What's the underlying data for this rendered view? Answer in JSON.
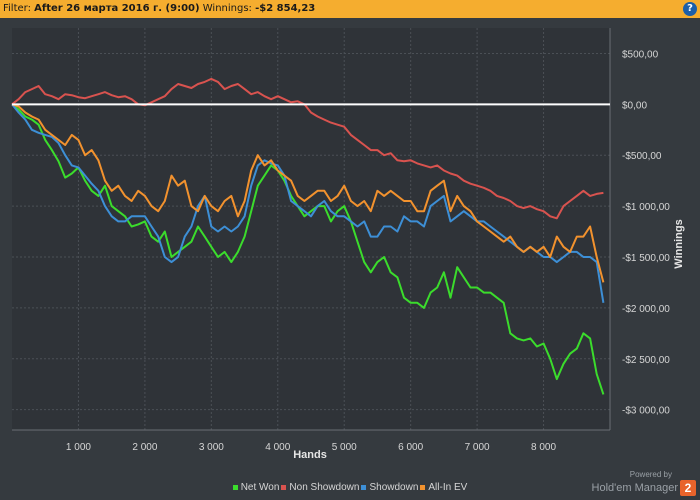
{
  "filter": {
    "label": "Filter:",
    "value": "After 26 марта 2016 г. (9:00)",
    "winnings_label": "Winnings:",
    "winnings_value": "-$2 854,23",
    "help_symbol": "?"
  },
  "branding": {
    "powered_by": "Powered by",
    "name": "Hold'em Manager",
    "logo_text": "2"
  },
  "chart_data": {
    "type": "line",
    "xlabel": "Hands",
    "ylabel": "Winnings",
    "xlim": [
      0,
      9000
    ],
    "ylim": [
      -3200,
      750
    ],
    "x_ticks": [
      1000,
      2000,
      3000,
      4000,
      5000,
      6000,
      7000,
      8000
    ],
    "x_tick_labels": [
      "1 000",
      "2 000",
      "3 000",
      "4 000",
      "5 000",
      "6 000",
      "7 000",
      "8 000"
    ],
    "y_ticks": [
      500,
      0,
      -500,
      -1000,
      -1500,
      -2000,
      -2500,
      -3000
    ],
    "y_tick_labels": [
      "$500,00",
      "$0,00",
      "-$500,00",
      "-$1 000,00",
      "-$1 500,00",
      "-$2 000,00",
      "-$2 500,00",
      "-$3 000,00"
    ],
    "y_axis_position": "right",
    "zero_line": true,
    "grid": true,
    "legend_position": "bottom",
    "series": [
      {
        "name": "Net Won",
        "color": "#3bdc2c",
        "x": [
          0,
          100,
          200,
          300,
          400,
          500,
          600,
          700,
          800,
          900,
          1000,
          1100,
          1200,
          1300,
          1400,
          1500,
          1600,
          1700,
          1800,
          1900,
          2000,
          2100,
          2200,
          2300,
          2400,
          2500,
          2600,
          2700,
          2800,
          2900,
          3000,
          3100,
          3200,
          3300,
          3400,
          3500,
          3600,
          3700,
          3800,
          3900,
          4000,
          4100,
          4200,
          4300,
          4400,
          4500,
          4600,
          4700,
          4800,
          4900,
          5000,
          5100,
          5200,
          5300,
          5400,
          5500,
          5600,
          5700,
          5800,
          5900,
          6000,
          6100,
          6200,
          6300,
          6400,
          6500,
          6600,
          6700,
          6800,
          6900,
          7000,
          7100,
          7200,
          7300,
          7400,
          7500,
          7600,
          7700,
          7800,
          7900,
          8000,
          8100,
          8200,
          8300,
          8400,
          8500,
          8600,
          8700,
          8800,
          8900
        ],
        "y": [
          0,
          -50,
          -120,
          -150,
          -200,
          -350,
          -450,
          -560,
          -720,
          -680,
          -620,
          -750,
          -850,
          -900,
          -800,
          -1000,
          -1050,
          -1100,
          -1200,
          -1180,
          -1150,
          -1300,
          -1350,
          -1250,
          -1500,
          -1450,
          -1400,
          -1350,
          -1200,
          -1300,
          -1400,
          -1500,
          -1450,
          -1550,
          -1450,
          -1300,
          -1050,
          -800,
          -700,
          -600,
          -650,
          -750,
          -900,
          -1000,
          -1100,
          -1050,
          -1000,
          -1000,
          -1150,
          -1050,
          -1000,
          -1150,
          -1350,
          -1550,
          -1650,
          -1550,
          -1500,
          -1650,
          -1700,
          -1900,
          -1950,
          -1950,
          -2000,
          -1850,
          -1800,
          -1650,
          -1900,
          -1600,
          -1700,
          -1800,
          -1800,
          -1850,
          -1850,
          -1900,
          -1950,
          -2250,
          -2300,
          -2320,
          -2300,
          -2380,
          -2350,
          -2500,
          -2700,
          -2550,
          -2450,
          -2400,
          -2250,
          -2300,
          -2650,
          -2850
        ]
      },
      {
        "name": "Non Showdown",
        "color": "#d9534f",
        "x": [
          0,
          100,
          200,
          300,
          400,
          500,
          600,
          700,
          800,
          900,
          1000,
          1100,
          1200,
          1300,
          1400,
          1500,
          1600,
          1700,
          1800,
          1900,
          2000,
          2100,
          2200,
          2300,
          2400,
          2500,
          2600,
          2700,
          2800,
          2900,
          3000,
          3100,
          3200,
          3300,
          3400,
          3500,
          3600,
          3700,
          3800,
          3900,
          4000,
          4100,
          4200,
          4300,
          4400,
          4500,
          4600,
          4700,
          4800,
          4900,
          5000,
          5100,
          5200,
          5300,
          5400,
          5500,
          5600,
          5700,
          5800,
          5900,
          6000,
          6100,
          6200,
          6300,
          6400,
          6500,
          6600,
          6700,
          6800,
          6900,
          7000,
          7100,
          7200,
          7300,
          7400,
          7500,
          7600,
          7700,
          7800,
          7900,
          8000,
          8100,
          8200,
          8300,
          8400,
          8500,
          8600,
          8700,
          8800,
          8900
        ],
        "y": [
          0,
          50,
          120,
          150,
          180,
          100,
          80,
          50,
          100,
          90,
          70,
          60,
          80,
          100,
          120,
          90,
          70,
          80,
          50,
          0,
          -10,
          20,
          50,
          80,
          150,
          200,
          180,
          160,
          200,
          220,
          250,
          220,
          150,
          180,
          200,
          150,
          100,
          120,
          80,
          50,
          80,
          50,
          20,
          30,
          0,
          -80,
          -120,
          -150,
          -180,
          -200,
          -220,
          -300,
          -350,
          -400,
          -450,
          -450,
          -500,
          -480,
          -550,
          -560,
          -550,
          -580,
          -600,
          -620,
          -600,
          -650,
          -680,
          -700,
          -750,
          -780,
          -800,
          -820,
          -850,
          -900,
          -920,
          -950,
          -1000,
          -1020,
          -1000,
          -1030,
          -1050,
          -1100,
          -1120,
          -1000,
          -950,
          -900,
          -850,
          -900,
          -880,
          -870
        ]
      },
      {
        "name": "Showdown",
        "color": "#3d8fd6",
        "x": [
          0,
          100,
          200,
          300,
          400,
          500,
          600,
          700,
          800,
          900,
          1000,
          1100,
          1200,
          1300,
          1400,
          1500,
          1600,
          1700,
          1800,
          1900,
          2000,
          2100,
          2200,
          2300,
          2400,
          2500,
          2600,
          2700,
          2800,
          2900,
          3000,
          3100,
          3200,
          3300,
          3400,
          3500,
          3600,
          3700,
          3800,
          3900,
          4000,
          4100,
          4200,
          4300,
          4400,
          4500,
          4600,
          4700,
          4800,
          4900,
          5000,
          5100,
          5200,
          5300,
          5400,
          5500,
          5600,
          5700,
          5800,
          5900,
          6000,
          6100,
          6200,
          6300,
          6400,
          6500,
          6600,
          6700,
          6800,
          6900,
          7000,
          7100,
          7200,
          7300,
          7400,
          7500,
          7600,
          7700,
          7800,
          7900,
          8000,
          8100,
          8200,
          8300,
          8400,
          8500,
          8600,
          8700,
          8800,
          8900
        ],
        "y": [
          0,
          -80,
          -150,
          -250,
          -280,
          -300,
          -320,
          -380,
          -500,
          -600,
          -620,
          -700,
          -780,
          -850,
          -1000,
          -1100,
          -1150,
          -1150,
          -1100,
          -1100,
          -1100,
          -1200,
          -1300,
          -1500,
          -1550,
          -1500,
          -1300,
          -1200,
          -1000,
          -900,
          -1200,
          -1250,
          -1200,
          -1250,
          -1200,
          -1100,
          -800,
          -600,
          -550,
          -580,
          -600,
          -700,
          -950,
          -1000,
          -1050,
          -1100,
          -1000,
          -950,
          -1050,
          -1100,
          -1100,
          -1150,
          -1200,
          -1150,
          -1300,
          -1300,
          -1200,
          -1200,
          -1250,
          -1100,
          -1150,
          -1150,
          -1200,
          -1000,
          -950,
          -900,
          -1150,
          -1100,
          -1050,
          -1100,
          -1150,
          -1150,
          -1200,
          -1250,
          -1300,
          -1350,
          -1400,
          -1450,
          -1400,
          -1450,
          -1500,
          -1500,
          -1550,
          -1500,
          -1450,
          -1450,
          -1500,
          -1500,
          -1550,
          -1950
        ]
      },
      {
        "name": "All-In EV",
        "color": "#f2922e",
        "x": [
          0,
          100,
          200,
          300,
          400,
          500,
          600,
          700,
          800,
          900,
          1000,
          1100,
          1200,
          1300,
          1400,
          1500,
          1600,
          1700,
          1800,
          1900,
          2000,
          2100,
          2200,
          2300,
          2400,
          2500,
          2600,
          2700,
          2800,
          2900,
          3000,
          3100,
          3200,
          3300,
          3400,
          3500,
          3600,
          3700,
          3800,
          3900,
          4000,
          4100,
          4200,
          4300,
          4400,
          4500,
          4600,
          4700,
          4800,
          4900,
          5000,
          5100,
          5200,
          5300,
          5400,
          5500,
          5600,
          5700,
          5800,
          5900,
          6000,
          6100,
          6200,
          6300,
          6400,
          6500,
          6600,
          6700,
          6800,
          6900,
          7000,
          7100,
          7200,
          7300,
          7400,
          7500,
          7600,
          7700,
          7800,
          7900,
          8000,
          8100,
          8200,
          8300,
          8400,
          8500,
          8600,
          8700,
          8800,
          8900
        ],
        "y": [
          0,
          -20,
          -80,
          -120,
          -150,
          -250,
          -300,
          -350,
          -400,
          -300,
          -350,
          -500,
          -450,
          -550,
          -750,
          -850,
          -800,
          -900,
          -950,
          -850,
          -900,
          -1000,
          -1050,
          -950,
          -700,
          -800,
          -750,
          -1000,
          -1050,
          -900,
          -1000,
          -1050,
          -950,
          -900,
          -1100,
          -950,
          -650,
          -500,
          -600,
          -550,
          -650,
          -700,
          -750,
          -900,
          -950,
          -900,
          -850,
          -850,
          -950,
          -900,
          -800,
          -950,
          -1000,
          -950,
          -1050,
          -850,
          -900,
          -850,
          -900,
          -950,
          -950,
          -1050,
          -1050,
          -850,
          -800,
          -750,
          -1050,
          -900,
          -1000,
          -1050,
          -1150,
          -1200,
          -1250,
          -1300,
          -1350,
          -1300,
          -1400,
          -1450,
          -1400,
          -1450,
          -1400,
          -1500,
          -1300,
          -1400,
          -1450,
          -1300,
          -1300,
          -1200,
          -1500,
          -1750
        ]
      }
    ]
  }
}
